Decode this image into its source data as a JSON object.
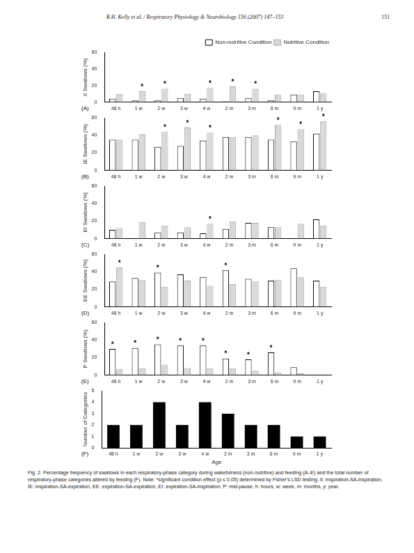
{
  "header": {
    "title": "B.H. Kelly et al. / Respiratory Physiology & Neurobiology 156 (2007) 147–153",
    "page": "151"
  },
  "chart_data": [
    {
      "type": "bar",
      "panel_label": "(A)",
      "y_label": "II Swallows (%)",
      "categories": [
        "48 h",
        "1 w",
        "2 w",
        "3 w",
        "4 w",
        "2 m",
        "3 m",
        "6 m",
        "9 m",
        "1 y"
      ],
      "series": [
        {
          "name": "Non-nutritive Condition",
          "color": "#ffffff",
          "values": [
            4,
            2,
            2,
            5,
            4,
            1,
            5,
            2,
            9,
            13
          ]
        },
        {
          "name": "Nutritive Condition",
          "color": "#d9d9d9",
          "values": [
            10,
            13,
            16,
            10,
            17,
            19,
            16,
            9,
            9,
            11
          ]
        }
      ],
      "annotations": [
        {
          "x": "1 w",
          "text": "*"
        },
        {
          "x": "2 w",
          "text": "*"
        },
        {
          "x": "4 w",
          "text": "*"
        },
        {
          "x": "2 m",
          "text": "*"
        },
        {
          "x": "3 m",
          "text": "*"
        }
      ],
      "ylim": [
        0,
        60
      ],
      "yticks": [
        0,
        20,
        40,
        60
      ],
      "grid": false,
      "legend": "upper right"
    },
    {
      "type": "bar",
      "panel_label": "(B)",
      "y_label": "IE Swallows (%)",
      "categories": [
        "48 h",
        "1 w",
        "2 w",
        "3 w",
        "4 w",
        "2 m",
        "3 m",
        "6 m",
        "9 m",
        "1 y"
      ],
      "series": [
        {
          "name": "Non-nutritive Condition",
          "color": "#ffffff",
          "values": [
            35,
            35,
            27,
            28,
            34,
            38,
            38,
            35,
            33,
            42
          ]
        },
        {
          "name": "Nutritive Condition",
          "color": "#d9d9d9",
          "values": [
            35,
            41,
            44,
            49,
            43,
            38,
            40,
            52,
            47,
            56
          ]
        }
      ],
      "annotations": [
        {
          "x": "2 w",
          "text": "*"
        },
        {
          "x": "3 w",
          "text": "*"
        },
        {
          "x": "4 w",
          "text": "*"
        },
        {
          "x": "6 m",
          "text": "*"
        },
        {
          "x": "9 m",
          "text": "*"
        },
        {
          "x": "1 y",
          "text": "*"
        }
      ],
      "ylim": [
        0,
        60
      ],
      "yticks": [
        0,
        20,
        40,
        60
      ],
      "grid": false
    },
    {
      "type": "bar",
      "panel_label": "(C)",
      "y_label": "EI Swallows (%)",
      "categories": [
        "48 h",
        "1 w",
        "2 w",
        "3 w",
        "4 w",
        "2 m",
        "3 m",
        "6 m",
        "9 m",
        "1 y"
      ],
      "series": [
        {
          "name": "Non-nutritive Condition",
          "color": "#ffffff",
          "values": [
            10,
            0,
            7,
            7,
            6,
            11,
            18,
            13,
            0,
            22
          ]
        },
        {
          "name": "Nutritive Condition",
          "color": "#d9d9d9",
          "values": [
            12,
            19,
            15,
            13,
            17,
            20,
            18,
            13,
            17,
            15
          ]
        }
      ],
      "annotations": [
        {
          "x": "4 w",
          "text": "*"
        }
      ],
      "ylim": [
        0,
        60
      ],
      "yticks": [
        0,
        20,
        40,
        60
      ],
      "grid": false
    },
    {
      "type": "bar",
      "panel_label": "(D)",
      "y_label": "EE Swallows (%)",
      "categories": [
        "48 h",
        "1 w",
        "2 w",
        "3 w",
        "4 w",
        "2 m",
        "3 m",
        "6 m",
        "9 m",
        "1 y"
      ],
      "series": [
        {
          "name": "Non-nutritive Condition",
          "color": "#ffffff",
          "values": [
            29,
            33,
            39,
            37,
            34,
            42,
            32,
            30,
            44,
            30
          ]
        },
        {
          "name": "Nutritive Condition",
          "color": "#d9d9d9",
          "values": [
            45,
            31,
            23,
            30,
            24,
            26,
            29,
            31,
            34,
            23
          ]
        }
      ],
      "annotations": [
        {
          "x": "48 h",
          "text": "*"
        },
        {
          "x": "2 w",
          "text": "*"
        },
        {
          "x": "2 m",
          "text": "*"
        }
      ],
      "ylim": [
        0,
        60
      ],
      "yticks": [
        0,
        20,
        40,
        60
      ],
      "grid": false
    },
    {
      "type": "bar",
      "panel_label": "(E)",
      "y_label": "P Swallows (%)",
      "categories": [
        "48 h",
        "1 w",
        "2 w",
        "3 w",
        "4 w",
        "2 m",
        "3 m",
        "6 m",
        "9 m",
        "1 y"
      ],
      "series": [
        {
          "name": "Non-nutritive Condition",
          "color": "#ffffff",
          "values": [
            30,
            31,
            35,
            34,
            34,
            19,
            18,
            26,
            9,
            0
          ]
        },
        {
          "name": "Nutritive Condition",
          "color": "#d9d9d9",
          "values": [
            7,
            8,
            12,
            8,
            8,
            8,
            5,
            3,
            2,
            0
          ]
        }
      ],
      "annotations": [
        {
          "x": "48 h",
          "text": "*"
        },
        {
          "x": "1 w",
          "text": "*"
        },
        {
          "x": "2 w",
          "text": "*"
        },
        {
          "x": "3 w",
          "text": "*"
        },
        {
          "x": "4 w",
          "text": "*"
        },
        {
          "x": "2 m",
          "text": "*"
        },
        {
          "x": "3 m",
          "text": "*"
        },
        {
          "x": "6 m",
          "text": "*"
        }
      ],
      "ylim": [
        0,
        60
      ],
      "yticks": [
        0,
        20,
        40,
        60
      ],
      "grid": false
    },
    {
      "type": "bar",
      "panel_label": "(F)",
      "y_label": "Number of Categories",
      "x_label": "Age",
      "categories": [
        "48 h",
        "1 w",
        "2 w",
        "3 w",
        "4 w",
        "2 m",
        "3 m",
        "6 m",
        "9 m",
        "1 y"
      ],
      "values": [
        2,
        2,
        4,
        2,
        4,
        3,
        2,
        2,
        1,
        1
      ],
      "color": "#000000",
      "ylim": [
        0,
        5
      ],
      "yticks": [
        0,
        1,
        2,
        3,
        4,
        5
      ],
      "grid": false
    }
  ],
  "caption": "Fig. 2. Percentage frequency of swallows in each respiratory-phase category during wakefulness (non-nutritive) and feeding (A–E) and the total number of respiratory-phase categories altered by feeding (F). Note: *significant condition effect (p ≤ 0.05) determined by Fisher's LSD testing. II: inspiration-SA-inspiration, IE: inspiration-SA-expiration, EE: expiration-SA-expiration, EI: expiration-SA-inspiration, P: mid-pause, h: hours, w: week, m: months, y: year."
}
